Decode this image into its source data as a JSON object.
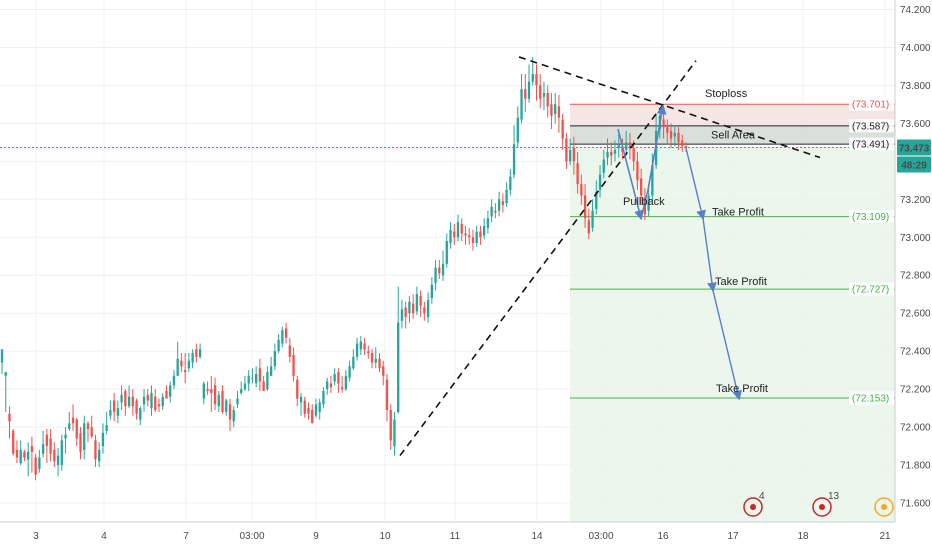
{
  "chart_data": {
    "type": "candlestick",
    "y_axis": {
      "min": 71.5,
      "max": 74.25,
      "ticks": [
        "74.200",
        "74.000",
        "73.800",
        "73.600",
        "73.400",
        "73.200",
        "73.000",
        "72.800",
        "72.600",
        "72.400",
        "72.200",
        "72.000",
        "71.800",
        "71.600"
      ]
    },
    "x_axis": {
      "ticks": [
        "3",
        "4",
        "7",
        "03:00",
        "9",
        "10",
        "11",
        "14",
        "03:00",
        "16",
        "17",
        "18",
        "21"
      ]
    },
    "colors": {
      "up": "#26a69a",
      "down": "#ef5350",
      "current": "#26a69a"
    },
    "current_price": {
      "value": 73.473,
      "label": "73.473",
      "countdown": "48:29"
    },
    "levels": [
      {
        "name": "Stoploss",
        "value": 73.701,
        "label": "(73.701)",
        "color": "#ef5350"
      },
      {
        "name": "Sell Area top",
        "value": 73.587,
        "label": "(73.587)",
        "color": "#222222"
      },
      {
        "name": "Sell Area bottom",
        "value": 73.491,
        "label": "(73.491)",
        "color": "#222222"
      },
      {
        "name": "Take Profit 1",
        "value": 73.109,
        "label": "(73.109)",
        "color": "#4caf50"
      },
      {
        "name": "Take Profit 2",
        "value": 72.727,
        "label": "(72.727)",
        "color": "#4caf50"
      },
      {
        "name": "Take Profit 3",
        "value": 72.153,
        "label": "(72.153)",
        "color": "#4caf50"
      }
    ],
    "annotations": {
      "stoploss": "Stoploss",
      "sell_area": "Sell Area",
      "pullback": "Pullback",
      "take_profit": "Take Profit"
    },
    "events": [
      {
        "label": "4",
        "color": "#c62828"
      },
      {
        "label": "13",
        "color": "#c62828"
      },
      {
        "label": "",
        "color": "#f9a825"
      }
    ],
    "candles": [
      [
        72.34,
        72.41,
        72.36,
        72.28
      ],
      [
        72.27,
        72.29,
        72.27,
        72.08
      ],
      [
        72.07,
        72.03,
        72.11,
        71.94
      ],
      [
        71.98,
        71.86,
        71.99,
        71.85
      ],
      [
        71.88,
        71.84,
        71.93,
        71.81
      ],
      [
        71.81,
        71.88,
        71.93,
        71.8
      ],
      [
        71.87,
        71.84,
        71.88,
        71.82
      ],
      [
        71.83,
        71.87,
        71.92,
        71.74
      ],
      [
        71.9,
        71.87,
        71.95,
        71.76
      ],
      [
        71.84,
        71.75,
        71.86,
        71.72
      ],
      [
        71.78,
        71.84,
        71.88,
        71.76
      ],
      [
        71.86,
        71.91,
        71.98,
        71.84
      ],
      [
        71.96,
        71.9,
        71.99,
        71.81
      ],
      [
        71.94,
        71.86,
        71.99,
        71.82
      ],
      [
        71.88,
        71.82,
        71.92,
        71.79
      ],
      [
        71.8,
        71.85,
        71.89,
        71.74
      ],
      [
        71.8,
        71.93,
        71.96,
        71.77
      ],
      [
        71.94,
        71.96,
        72.0,
        71.86
      ],
      [
        71.99,
        72.02,
        72.08,
        71.98
      ],
      [
        72.05,
        72.02,
        72.12,
        71.98
      ],
      [
        72.04,
        71.94,
        72.05,
        71.9
      ],
      [
        71.97,
        71.87,
        72.0,
        71.83
      ],
      [
        71.88,
        72.02,
        72.06,
        71.83
      ],
      [
        72.02,
        71.99,
        72.03,
        71.92
      ],
      [
        72.0,
        71.95,
        72.06,
        71.94
      ],
      [
        71.93,
        71.83,
        71.96,
        71.79
      ],
      [
        71.82,
        71.88,
        71.92,
        71.79
      ],
      [
        71.9,
        71.97,
        72.02,
        71.86
      ],
      [
        71.98,
        72.01,
        72.08,
        71.96
      ],
      [
        72.06,
        72.09,
        72.14,
        72.04
      ],
      [
        72.14,
        72.08,
        72.18,
        72.03
      ],
      [
        72.06,
        72.1,
        72.14,
        72.02
      ],
      [
        72.13,
        72.17,
        72.22,
        72.09
      ],
      [
        72.19,
        72.11,
        72.2,
        72.06
      ],
      [
        72.11,
        72.16,
        72.22,
        72.1
      ],
      [
        72.16,
        72.11,
        72.2,
        72.06
      ],
      [
        72.14,
        72.07,
        72.15,
        72.04
      ],
      [
        72.04,
        72.1,
        72.11,
        72.01
      ],
      [
        72.12,
        72.16,
        72.2,
        72.08
      ],
      [
        72.17,
        72.14,
        72.2,
        72.11
      ],
      [
        72.1,
        72.18,
        72.22,
        72.06
      ],
      [
        72.16,
        72.09,
        72.2,
        72.08
      ],
      [
        72.12,
        72.11,
        72.15,
        72.08
      ],
      [
        72.11,
        72.16,
        72.18,
        72.09
      ],
      [
        72.19,
        72.15,
        72.22,
        72.15
      ],
      [
        72.16,
        72.22,
        72.24,
        72.13
      ],
      [
        72.22,
        72.27,
        72.3,
        72.2
      ],
      [
        72.27,
        72.36,
        72.45,
        72.27
      ],
      [
        72.35,
        72.32,
        72.39,
        72.29
      ],
      [
        72.3,
        72.29,
        72.39,
        72.23
      ],
      [
        72.31,
        72.35,
        72.39,
        72.29
      ],
      [
        72.34,
        72.39,
        72.41,
        72.31
      ],
      [
        72.41,
        72.37,
        72.44,
        72.34
      ],
      [
        72.37,
        72.41,
        72.44,
        72.36
      ],
      [
        72.15,
        72.23,
        72.24,
        72.12
      ],
      [
        72.2,
        72.19,
        72.24,
        72.17
      ],
      [
        72.2,
        72.18,
        72.27,
        72.08
      ],
      [
        72.22,
        72.12,
        72.26,
        72.09
      ],
      [
        72.11,
        72.17,
        72.19,
        72.08
      ],
      [
        72.19,
        72.08,
        72.22,
        72.07
      ],
      [
        72.08,
        72.14,
        72.15,
        72.06
      ],
      [
        72.12,
        72.04,
        72.15,
        71.98
      ],
      [
        72.03,
        72.09,
        72.11,
        72.0
      ],
      [
        72.12,
        72.15,
        72.19,
        72.1
      ],
      [
        72.18,
        72.2,
        72.24,
        72.17
      ],
      [
        72.2,
        72.23,
        72.27,
        72.19
      ],
      [
        72.23,
        72.27,
        72.3,
        72.19
      ],
      [
        72.26,
        72.26,
        72.31,
        72.23
      ],
      [
        72.23,
        72.28,
        72.32,
        72.21
      ],
      [
        72.31,
        72.24,
        72.36,
        72.19
      ],
      [
        72.24,
        72.19,
        72.27,
        72.19
      ],
      [
        72.2,
        72.29,
        72.32,
        72.19
      ],
      [
        72.27,
        72.32,
        72.37,
        72.27
      ],
      [
        72.32,
        72.4,
        72.44,
        72.3
      ],
      [
        72.4,
        72.46,
        72.49,
        72.39
      ],
      [
        72.44,
        72.51,
        72.53,
        72.42
      ],
      [
        72.52,
        72.47,
        72.55,
        72.44
      ],
      [
        72.43,
        72.37,
        72.47,
        72.34
      ],
      [
        72.38,
        72.27,
        72.42,
        72.24
      ],
      [
        72.25,
        72.15,
        72.27,
        72.11
      ],
      [
        72.13,
        72.16,
        72.18,
        72.06
      ],
      [
        72.14,
        72.07,
        72.16,
        72.05
      ],
      [
        72.1,
        72.07,
        72.13,
        72.04
      ],
      [
        72.09,
        72.02,
        72.12,
        72.02
      ],
      [
        72.06,
        72.12,
        72.15,
        72.05
      ],
      [
        72.08,
        72.13,
        72.15,
        72.04
      ],
      [
        72.12,
        72.19,
        72.21,
        72.1
      ],
      [
        72.2,
        72.24,
        72.26,
        72.17
      ],
      [
        72.23,
        72.21,
        72.27,
        72.18
      ],
      [
        72.24,
        72.28,
        72.31,
        72.22
      ],
      [
        72.29,
        72.23,
        72.31,
        72.18
      ],
      [
        72.21,
        72.2,
        72.27,
        72.18
      ],
      [
        72.2,
        72.27,
        72.3,
        72.19
      ],
      [
        72.26,
        72.32,
        72.35,
        72.24
      ],
      [
        72.31,
        72.37,
        72.41,
        72.3
      ],
      [
        72.37,
        72.44,
        72.47,
        72.35
      ],
      [
        72.41,
        72.45,
        72.48,
        72.38
      ],
      [
        72.44,
        72.41,
        72.47,
        72.38
      ],
      [
        72.4,
        72.39,
        72.43,
        72.36
      ],
      [
        72.39,
        72.34,
        72.41,
        72.31
      ],
      [
        72.34,
        72.36,
        72.42,
        72.31
      ],
      [
        72.36,
        72.31,
        72.39,
        72.29
      ],
      [
        72.32,
        72.27,
        72.35,
        72.22
      ],
      [
        72.25,
        72.09,
        72.28,
        72.03
      ],
      [
        72.09,
        71.93,
        72.12,
        71.88
      ],
      [
        71.9,
        72.04,
        72.08,
        71.85
      ],
      [
        72.08,
        72.55,
        72.74,
        72.07
      ],
      [
        72.56,
        72.62,
        72.67,
        72.52
      ],
      [
        72.63,
        72.58,
        72.66,
        72.52
      ],
      [
        72.6,
        72.66,
        72.69,
        72.55
      ],
      [
        72.65,
        72.6,
        72.7,
        72.57
      ],
      [
        72.61,
        72.7,
        72.74,
        72.59
      ],
      [
        72.69,
        72.64,
        72.72,
        72.58
      ],
      [
        72.63,
        72.6,
        72.66,
        72.56
      ],
      [
        72.58,
        72.67,
        72.71,
        72.55
      ],
      [
        72.68,
        72.75,
        72.79,
        72.65
      ],
      [
        72.76,
        72.84,
        72.88,
        72.72
      ],
      [
        72.84,
        72.81,
        72.88,
        72.78
      ],
      [
        72.8,
        72.86,
        72.93,
        72.77
      ],
      [
        72.86,
        72.98,
        73.02,
        72.84
      ],
      [
        72.97,
        73.04,
        73.08,
        72.94
      ],
      [
        73.03,
        73.0,
        73.07,
        72.96
      ],
      [
        73.0,
        73.08,
        73.12,
        72.98
      ],
      [
        73.07,
        73.02,
        73.1,
        72.98
      ],
      [
        73.02,
        73.01,
        73.06,
        72.96
      ],
      [
        73.01,
        73.0,
        73.05,
        72.96
      ],
      [
        73.0,
        72.97,
        73.04,
        72.93
      ],
      [
        72.97,
        73.03,
        73.06,
        72.95
      ],
      [
        73.03,
        73.0,
        73.06,
        72.96
      ],
      [
        73.01,
        73.06,
        73.1,
        72.99
      ],
      [
        73.05,
        73.1,
        73.14,
        73.02
      ],
      [
        73.11,
        73.16,
        73.2,
        73.08
      ],
      [
        73.14,
        73.13,
        73.18,
        73.1
      ],
      [
        73.14,
        73.2,
        73.24,
        73.11
      ],
      [
        73.19,
        73.17,
        73.23,
        73.13
      ],
      [
        73.18,
        73.25,
        73.29,
        73.16
      ],
      [
        73.25,
        73.32,
        73.36,
        73.22
      ],
      [
        73.33,
        73.49,
        73.59,
        73.31
      ],
      [
        73.5,
        73.63,
        73.69,
        73.47
      ],
      [
        73.62,
        73.78,
        73.86,
        73.6
      ],
      [
        73.78,
        73.73,
        73.86,
        73.66
      ],
      [
        73.73,
        73.82,
        73.91,
        73.71
      ],
      [
        73.82,
        73.86,
        73.95,
        73.8
      ],
      [
        73.86,
        73.8,
        73.91,
        73.72
      ],
      [
        73.8,
        73.73,
        73.86,
        73.68
      ],
      [
        73.74,
        73.76,
        73.82,
        73.67
      ],
      [
        73.76,
        73.69,
        73.8,
        73.63
      ],
      [
        73.7,
        73.64,
        73.76,
        73.57
      ],
      [
        73.65,
        73.7,
        73.76,
        73.6
      ],
      [
        73.69,
        73.63,
        73.75,
        73.55
      ],
      [
        73.62,
        73.52,
        73.65,
        73.46
      ],
      [
        73.52,
        73.4,
        73.55,
        73.36
      ],
      [
        73.4,
        73.46,
        73.52,
        73.38
      ],
      [
        73.47,
        73.4,
        73.53,
        73.33
      ],
      [
        73.39,
        73.28,
        73.45,
        73.23
      ],
      [
        73.28,
        73.22,
        73.33,
        73.17
      ],
      [
        73.22,
        73.1,
        73.28,
        73.05
      ],
      [
        73.09,
        73.02,
        73.15,
        72.99
      ],
      [
        73.05,
        73.14,
        73.2,
        73.03
      ],
      [
        73.15,
        73.24,
        73.3,
        73.12
      ],
      [
        73.25,
        73.33,
        73.38,
        73.21
      ],
      [
        73.34,
        73.41,
        73.46,
        73.31
      ],
      [
        73.42,
        73.45,
        73.52,
        73.38
      ],
      [
        73.45,
        73.43,
        73.5,
        73.38
      ],
      [
        73.44,
        73.46,
        73.51,
        73.4
      ],
      [
        73.47,
        73.49,
        73.55,
        73.42
      ],
      [
        73.48,
        73.45,
        73.52,
        73.41
      ],
      [
        73.46,
        73.5,
        73.56,
        73.43
      ],
      [
        73.5,
        73.47,
        73.55,
        73.41
      ],
      [
        73.47,
        73.4,
        73.51,
        73.35
      ],
      [
        73.4,
        73.3,
        73.45,
        73.25
      ],
      [
        73.31,
        73.22,
        73.36,
        73.17
      ],
      [
        73.21,
        73.12,
        73.26,
        73.09
      ],
      [
        73.14,
        73.22,
        73.28,
        73.11
      ],
      [
        73.22,
        73.38,
        73.44,
        73.19
      ],
      [
        73.38,
        73.56,
        73.65,
        73.36
      ],
      [
        73.57,
        73.64,
        73.68,
        73.52
      ],
      [
        73.62,
        73.58,
        73.66,
        73.52
      ],
      [
        73.58,
        73.55,
        73.62,
        73.49
      ],
      [
        73.56,
        73.52,
        73.6,
        73.47
      ],
      [
        73.53,
        73.55,
        73.59,
        73.48
      ],
      [
        73.55,
        73.5,
        73.58,
        73.46
      ],
      [
        73.51,
        73.48,
        73.54,
        73.45
      ],
      [
        73.48,
        73.47,
        73.5,
        73.45
      ]
    ]
  }
}
